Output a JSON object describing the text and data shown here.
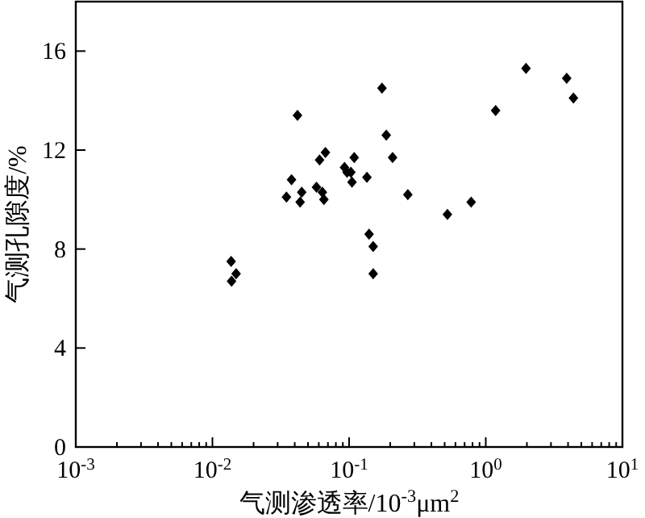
{
  "chart_data": {
    "type": "scatter",
    "xlabel": "气测渗透率/10$^{-3}$μm$^{2}$",
    "ylabel": "气测孔隙度/%",
    "log": "x",
    "marker": "diamond",
    "grid": false,
    "color": "#000000",
    "xlim": [
      0.001,
      10
    ],
    "ylim": [
      0,
      18
    ],
    "xticks": [
      {
        "value": 0.001,
        "label": "10$^{-3}$"
      },
      {
        "value": 0.01,
        "label": "10$^{-2}$"
      },
      {
        "value": 0.1,
        "label": "10$^{-1}$"
      },
      {
        "value": 1,
        "label": "10$^{0}$"
      },
      {
        "value": 10,
        "label": "10$^{1}$"
      }
    ],
    "yticks": [
      0,
      4,
      8,
      12,
      16
    ],
    "x": [
      0.0137,
      0.0149,
      0.0138,
      0.0348,
      0.0379,
      0.0419,
      0.0438,
      0.045,
      0.0577,
      0.0608,
      0.0671,
      0.0637,
      0.0654,
      0.0925,
      0.0966,
      0.103,
      0.109,
      0.105,
      0.135,
      0.14,
      0.15,
      0.15,
      0.174,
      0.187,
      0.208,
      0.269,
      0.524,
      0.782,
      1.18,
      1.97,
      3.91,
      4.38
    ],
    "values": [
      7.5,
      7.0,
      6.7,
      10.1,
      10.8,
      13.4,
      9.9,
      10.3,
      10.5,
      11.6,
      11.9,
      10.3,
      10.0,
      11.3,
      11.1,
      11.1,
      11.7,
      10.7,
      10.9,
      8.6,
      8.1,
      7.0,
      14.5,
      12.6,
      11.7,
      10.2,
      9.4,
      9.9,
      13.6,
      15.3,
      14.9,
      14.1
    ]
  }
}
